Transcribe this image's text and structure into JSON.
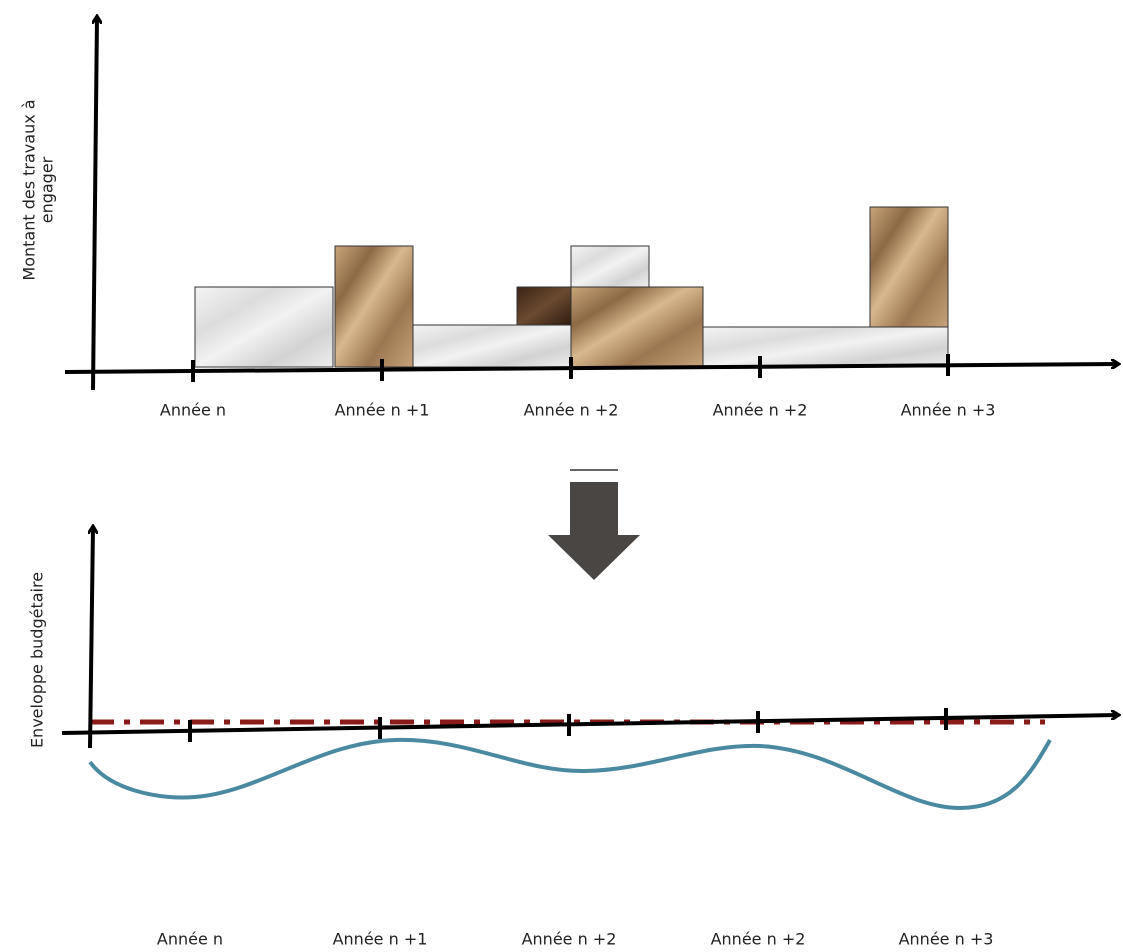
{
  "top_chart": {
    "y_axis_label": [
      "Montant des travaux à",
      "engager"
    ],
    "x_labels": [
      "Année n",
      "Année n +1",
      "Année n +2",
      "Année n +2",
      "Année n +3"
    ]
  },
  "bottom_chart": {
    "y_axis_label": "Enveloppe budgétaire",
    "x_labels": [
      "Année n",
      "Année n +1",
      "Année n +2",
      "Année n +2",
      "Année n +3"
    ]
  }
}
